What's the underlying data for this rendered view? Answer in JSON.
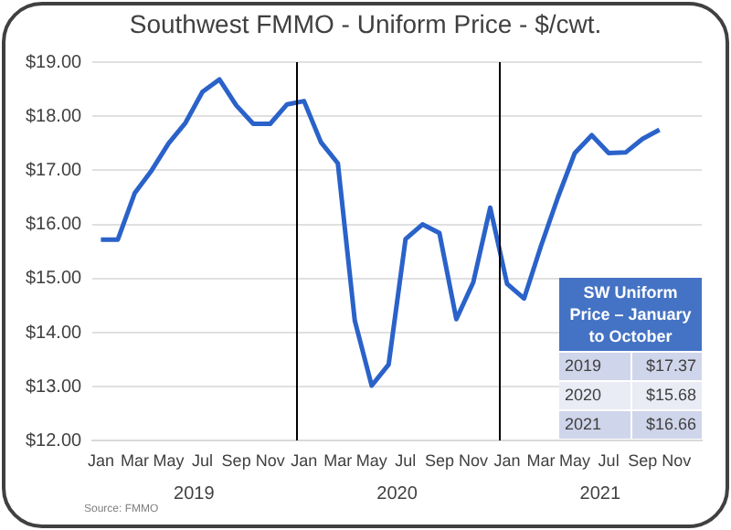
{
  "chart_data": [
    {
      "type": "line",
      "title": "Southwest FMMO - Uniform Price - $/cwt.",
      "categories": [
        "Jan",
        null,
        "Mar",
        null,
        "May",
        null,
        "Jul",
        null,
        "Sep",
        null,
        "Nov",
        null,
        "Jan",
        null,
        "Mar",
        null,
        "May",
        null,
        "Jul",
        null,
        "Sep",
        null,
        "Nov",
        null,
        "Jan",
        null,
        "Mar",
        null,
        "May",
        null,
        "Jul",
        null,
        "Sep",
        null,
        "Nov",
        null
      ],
      "series": [
        {
          "color": "#2a62c9",
          "values": [
            15.72,
            15.72,
            16.58,
            17.0,
            17.5,
            17.88,
            18.45,
            18.68,
            18.2,
            17.86,
            17.86,
            18.22,
            18.28,
            17.52,
            17.13,
            14.22,
            13.02,
            13.41,
            15.73,
            16.0,
            15.84,
            14.25,
            14.93,
            16.31,
            14.9,
            14.63,
            15.6,
            16.5,
            17.32,
            17.65,
            17.32,
            17.33,
            17.58,
            17.75,
            null,
            null
          ]
        }
      ],
      "ylim": [
        12,
        19
      ],
      "yticks": [
        {
          "value": 12,
          "label": "$12.00"
        },
        {
          "value": 13,
          "label": "$13.00"
        },
        {
          "value": 14,
          "label": "$14.00"
        },
        {
          "value": 15,
          "label": "$15.00"
        },
        {
          "value": 16,
          "label": "$16.00"
        },
        {
          "value": 17,
          "label": "$17.00"
        },
        {
          "value": 18,
          "label": "$18.00"
        },
        {
          "value": 19,
          "label": "$19.00"
        }
      ],
      "grid": "y",
      "annotations": [
        {
          "text": "2019"
        },
        {
          "text": "2020"
        },
        {
          "text": "2021"
        },
        "Source: FMMO"
      ]
    },
    {
      "type": "other",
      "title": "SW Uniform Price – January to October",
      "categories": [
        "2019",
        "2020",
        "2021"
      ],
      "value_labels": [
        "$17.37",
        "$15.68",
        "$16.66"
      ]
    }
  ]
}
